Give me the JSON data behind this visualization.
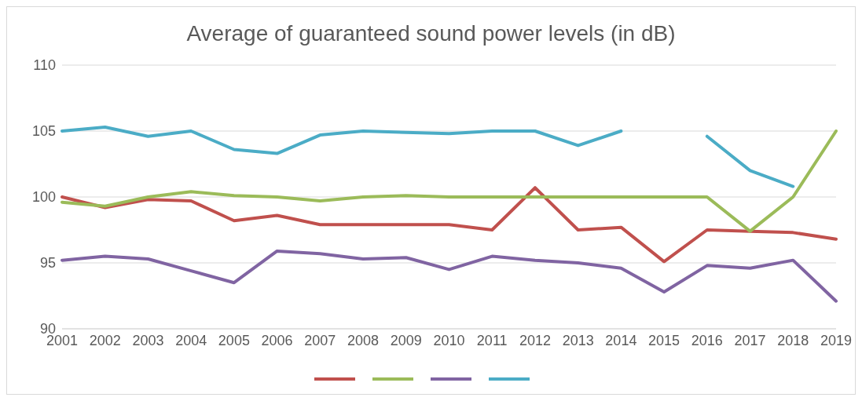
{
  "chart_data": {
    "type": "line",
    "title": "Average of guaranteed sound power levels (in dB)",
    "categories": [
      "2001",
      "2002",
      "2003",
      "2004",
      "2005",
      "2006",
      "2007",
      "2008",
      "2009",
      "2010",
      "2011",
      "2012",
      "2013",
      "2014",
      "2015",
      "2016",
      "2017",
      "2018",
      "2019"
    ],
    "series": [
      {
        "color": "#c0504d",
        "values": [
          100,
          99.2,
          99.8,
          99.7,
          98.2,
          98.6,
          97.9,
          97.9,
          97.9,
          97.9,
          97.5,
          100.7,
          97.5,
          97.7,
          95.1,
          97.5,
          97.4,
          97.3,
          96.8
        ]
      },
      {
        "color": "#9bbb59",
        "values": [
          99.6,
          99.3,
          100,
          100.4,
          100.1,
          100,
          99.7,
          100,
          100.1,
          100,
          100,
          100,
          100,
          100,
          100,
          100,
          97.4,
          100,
          105
        ]
      },
      {
        "color": "#8064a2",
        "values": [
          95.2,
          95.5,
          95.3,
          94.4,
          93.5,
          95.9,
          95.7,
          95.3,
          95.4,
          94.5,
          95.5,
          95.2,
          95,
          94.6,
          92.8,
          94.8,
          94.6,
          95.2,
          92.1
        ]
      },
      {
        "color": "#4bacc6",
        "values": [
          105,
          105.3,
          104.6,
          105,
          103.6,
          103.3,
          104.7,
          105,
          104.9,
          104.8,
          105,
          105,
          103.9,
          105,
          null,
          104.6,
          102,
          100.8,
          null
        ]
      }
    ],
    "ylim": [
      90,
      110
    ],
    "yticks": [
      90,
      95,
      100,
      105,
      110
    ],
    "grid": "y",
    "marker": "none",
    "line_style": "solid"
  }
}
